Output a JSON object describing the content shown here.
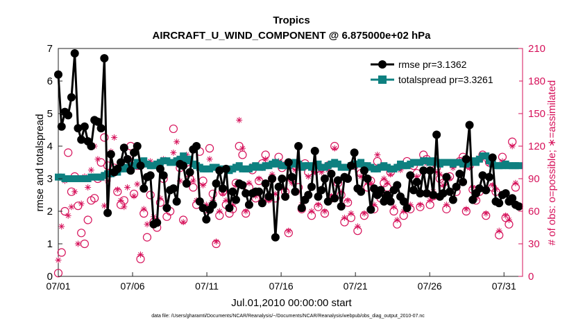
{
  "chart_data": {
    "type": "line",
    "title": "Tropics",
    "subtitle": "AIRCRAFT_U_WIND_COMPONENT @ 6.875000e+02 hPa",
    "xlabel": "Jul.01,2010 00:00:00 start",
    "ylabel": "rmse and totalspread",
    "ylabel_right": "# of obs: o=possible; ∗=assimilated",
    "footnote": "data file: /Users/gharamti/Documents/NCAR/Reanalysis/~/Documents/NCAR/Reanalysis/webpub/obs_diag_output_2010-07.nc",
    "xlim": [
      1,
      32.25
    ],
    "ylim": [
      0,
      7
    ],
    "ylim_right": [
      0,
      210
    ],
    "xticks": [
      1,
      6,
      11,
      16,
      21,
      26,
      31
    ],
    "xtick_labels": [
      "07/01",
      "07/06",
      "07/11",
      "07/16",
      "07/21",
      "07/26",
      "07/31"
    ],
    "yticks": [
      "0",
      "1",
      "2",
      "3",
      "4",
      "5",
      "6",
      "7"
    ],
    "yticks_right": [
      "0",
      "30",
      "60",
      "90",
      "120",
      "150",
      "180",
      "210"
    ],
    "legend": {
      "position": "top-right",
      "entries": [
        "rmse pr=3.1362",
        "totalspread pr=3.3261"
      ]
    },
    "colors": {
      "rmse": "#000000",
      "spread": "#0e8080",
      "obs": "#d6115a"
    },
    "series": [
      {
        "name": "rmse",
        "axis": "left",
        "marker": "circle",
        "values": [
          6.2,
          4.6,
          5.05,
          4.95,
          5.5,
          6.85,
          4.55,
          4.2,
          4.6,
          4.15,
          4.0,
          4.8,
          4.75,
          4.55,
          6.7,
          1.95,
          3.75,
          3.2,
          3.3,
          3.5,
          3.95,
          3.6,
          3.25,
          3.8,
          4.0,
          3.4,
          2.7,
          3.05,
          3.1,
          1.6,
          1.65,
          3.3,
          3.1,
          2.1,
          2.65,
          2.7,
          2.3,
          3.45,
          3.4,
          2.85,
          3.2,
          3.9,
          4.0,
          2.3,
          2.1,
          1.75,
          2.05,
          2.2,
          2.85,
          3.25,
          2.7,
          3.3,
          2.1,
          2.6,
          2.35,
          2.85,
          2.8,
          2.55,
          2.2,
          2.55,
          2.6,
          2.6,
          2.25,
          2.85,
          2.45,
          3.0,
          1.2,
          2.75,
          3.0,
          2.45,
          3.5,
          3.05,
          2.6,
          4.0,
          2.1,
          2.35,
          2.5,
          2.75,
          3.85,
          2.45,
          2.65,
          3.0,
          2.3,
          3.15,
          2.4,
          2.95,
          2.15,
          3.05,
          3.0,
          3.4,
          3.8,
          2.7,
          2.6,
          3.25,
          3.0,
          2.05,
          2.7,
          2.5,
          2.65,
          2.3,
          2.5,
          2.3,
          2.65,
          2.8,
          2.45,
          2.3,
          2.1,
          3.1,
          2.65,
          2.9,
          2.55,
          3.25,
          2.55,
          3.25,
          2.5,
          4.35,
          2.45,
          2.55,
          3.05,
          2.6,
          2.35,
          2.75,
          3.15,
          2.9,
          3.6,
          4.65,
          2.35,
          2.55,
          2.7,
          3.1,
          2.65,
          3.05,
          3.65,
          2.3,
          2.25,
          2.5,
          2.55,
          2.3,
          2.4,
          2.2,
          2.15
        ]
      },
      {
        "name": "totalspread",
        "axis": "left",
        "marker": "square",
        "values": [
          3.05,
          3.05,
          3.0,
          3.0,
          3.0,
          3.0,
          3.0,
          3.0,
          3.0,
          3.0,
          3.05,
          3.05,
          3.05,
          3.05,
          3.1,
          3.15,
          3.15,
          3.2,
          3.2,
          3.3,
          3.3,
          3.35,
          3.4,
          3.4,
          3.5,
          3.5,
          3.55,
          3.45,
          3.4,
          3.4,
          3.45,
          3.5,
          3.55,
          3.55,
          3.5,
          3.5,
          3.55,
          3.6,
          3.7,
          3.55,
          3.6,
          3.45,
          3.4,
          3.35,
          3.3,
          3.3,
          3.3,
          3.35,
          3.35,
          3.3,
          3.3,
          3.3,
          3.25,
          3.3,
          3.35,
          3.4,
          3.3,
          3.3,
          3.3,
          3.35,
          3.4,
          3.35,
          3.35,
          3.4,
          3.4,
          3.45,
          3.5,
          3.45,
          3.4,
          3.4,
          3.4,
          3.45,
          3.5,
          3.45,
          3.35,
          3.4,
          3.4,
          3.35,
          3.4,
          3.45,
          3.35,
          3.35,
          3.4,
          3.45,
          3.5,
          3.45,
          3.35,
          3.35,
          3.35,
          3.4,
          3.45,
          3.45,
          3.5,
          3.4,
          3.4,
          3.35,
          3.3,
          3.3,
          3.35,
          3.4,
          3.35,
          3.3,
          3.3,
          3.35,
          3.45,
          3.4,
          3.4,
          3.45,
          3.5,
          3.5,
          3.5,
          3.55,
          3.55,
          3.5,
          3.55,
          3.5,
          3.45,
          3.5,
          3.5,
          3.5,
          3.45,
          3.5,
          3.5,
          3.45,
          3.45,
          3.5,
          3.55,
          3.5,
          3.6,
          3.7,
          3.7,
          3.55,
          3.45,
          3.4,
          3.4,
          3.4,
          3.45,
          3.4,
          3.4,
          3.4,
          3.4
        ]
      },
      {
        "name": "obs possible",
        "axis": "right",
        "marker": "circle-open",
        "values": [
          3,
          22,
          60,
          114,
          78,
          92,
          65,
          40,
          30,
          52,
          70,
          72,
          90,
          105,
          128,
          102,
          95,
          100,
          78,
          66,
          70,
          105,
          120,
          76,
          102,
          16,
          58,
          36,
          75,
          50,
          45,
          68,
          90,
          55,
          60,
          136,
          106,
          100,
          52,
          105,
          90,
          82,
          66,
          115,
          88,
          62,
          118,
          76,
          30,
          56,
          78,
          66,
          58,
          62,
          86,
          120,
          112,
          58,
          82,
          98,
          72,
          88,
          104,
          112,
          72,
          90,
          72,
          110,
          100,
          78,
          40,
          90,
          102,
          82,
          62,
          104,
          96,
          56,
          98,
          64,
          100,
          58,
          102,
          72,
          120,
          86,
          75,
          50,
          68,
          54,
          102,
          42,
          95,
          56,
          82,
          88,
          62,
          106,
          72,
          86,
          82,
          96,
          60,
          48,
          102,
          56,
          106,
          62,
          102,
          95,
          64,
          112,
          108,
          66,
          74,
          100,
          90,
          86,
          62,
          92,
          104,
          78,
          106,
          110,
          60,
          102,
          80,
          70,
          78,
          112,
          56,
          105,
          82,
          78,
          38,
          110,
          54,
          48,
          124,
          82
        ]
      },
      {
        "name": "obs assimilated",
        "axis": "right",
        "marker": "asterisk",
        "values": [
          15,
          46,
          88,
          56,
          64,
          78,
          30,
          67,
          92,
          82,
          98,
          120,
          108,
          90,
          65,
          88,
          115,
          128,
          80,
          70,
          64,
          82,
          108,
          74,
          85,
          20,
          62,
          48,
          106,
          55,
          52,
          72,
          108,
          62,
          80,
          114,
          124,
          88,
          50,
          112,
          94,
          88,
          70,
          100,
          84,
          66,
          108,
          70,
          32,
          60,
          76,
          70,
          62,
          66,
          84,
          144,
          118,
          60,
          86,
          102,
          74,
          90,
          100,
          108,
          70,
          94,
          76,
          106,
          104,
          80,
          42,
          86,
          98,
          78,
          66,
          102,
          92,
          60,
          96,
          66,
          96,
          60,
          98,
          74,
          118,
          88,
          78,
          54,
          70,
          58,
          104,
          46,
          92,
          58,
          86,
          86,
          66,
          112,
          76,
          90,
          86,
          94,
          64,
          52,
          98,
          60,
          102,
          66,
          104,
          92,
          66,
          108,
          104,
          70,
          78,
          96,
          94,
          84,
          66,
          90,
          100,
          82,
          104,
          108,
          62,
          100,
          82,
          72,
          80,
          108,
          58,
          104,
          84,
          80,
          42,
          106,
          56,
          52,
          120,
          86
        ]
      }
    ]
  }
}
